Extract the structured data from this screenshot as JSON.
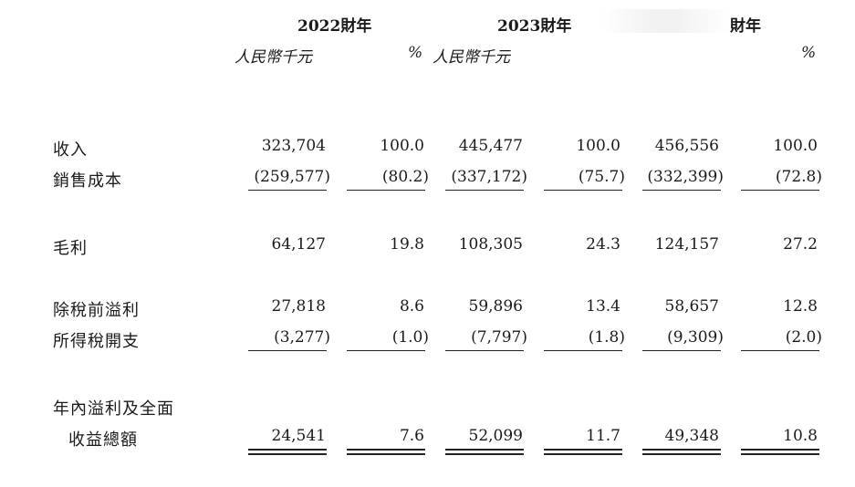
{
  "header": {
    "year_2022": "2022財年",
    "year_2023": "2023財年",
    "year_3_suffix": "財年",
    "unit_rmb": "人民幣千元",
    "unit_pct": "%"
  },
  "rows": [
    {
      "label": "收入",
      "v": [
        "323,704",
        "100.0",
        "445,477",
        "100.0",
        "456,556",
        "100.0"
      ]
    },
    {
      "label": "銷售成本",
      "v": [
        "(259,577)",
        "(80.2)",
        "(337,172)",
        "(75.7)",
        "(332,399)",
        "(72.8)"
      ]
    },
    {
      "label": "毛利",
      "v": [
        "64,127",
        "19.8",
        "108,305",
        "24.3",
        "124,157",
        "27.2"
      ]
    },
    {
      "label": "除稅前溢利",
      "v": [
        "27,818",
        "8.6",
        "59,896",
        "13.4",
        "58,657",
        "12.8"
      ]
    },
    {
      "label": "所得稅開支",
      "v": [
        "(3,277)",
        "(1.0)",
        "(7,797)",
        "(1.8)",
        "(9,309)",
        "(2.0)"
      ]
    },
    {
      "label": "年內溢利及全面",
      "v": [
        "",
        "",
        "",
        "",
        "",
        ""
      ]
    },
    {
      "label": "收益總額",
      "v": [
        "24,541",
        "7.6",
        "52,099",
        "11.7",
        "49,348",
        "10.8"
      ]
    }
  ]
}
